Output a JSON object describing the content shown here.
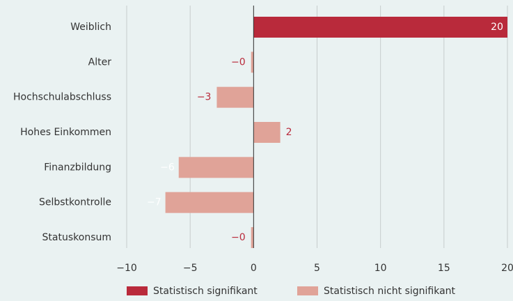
{
  "chart_data": {
    "type": "hbar",
    "categories": [
      "Weiblich",
      "Alter",
      "Hochschulabschluss",
      "Hohes Einkommen",
      "Finanzbildung",
      "Selbstkontrolle",
      "Statuskonsum"
    ],
    "values": [
      20,
      -0.2,
      -2.9,
      2.1,
      -5.9,
      -6.95,
      -0.2
    ],
    "value_labels": [
      "20",
      "−0",
      "−3",
      "2",
      "−6",
      "−7",
      "−0"
    ],
    "legend_index": [
      0,
      1,
      1,
      1,
      1,
      1,
      1
    ],
    "legend": [
      {
        "name": "Statistisch signifikant",
        "color": "#b92a3b"
      },
      {
        "name": "Statistisch nicht signifikant",
        "color": "#e0a398"
      }
    ],
    "label_color": "#b92a3b",
    "xlim": [
      -10,
      20
    ],
    "xticks": [
      {
        "value": -10,
        "label": "−10"
      },
      {
        "value": -5,
        "label": "−5"
      },
      0,
      5,
      10,
      15,
      20
    ],
    "grid": true
  }
}
